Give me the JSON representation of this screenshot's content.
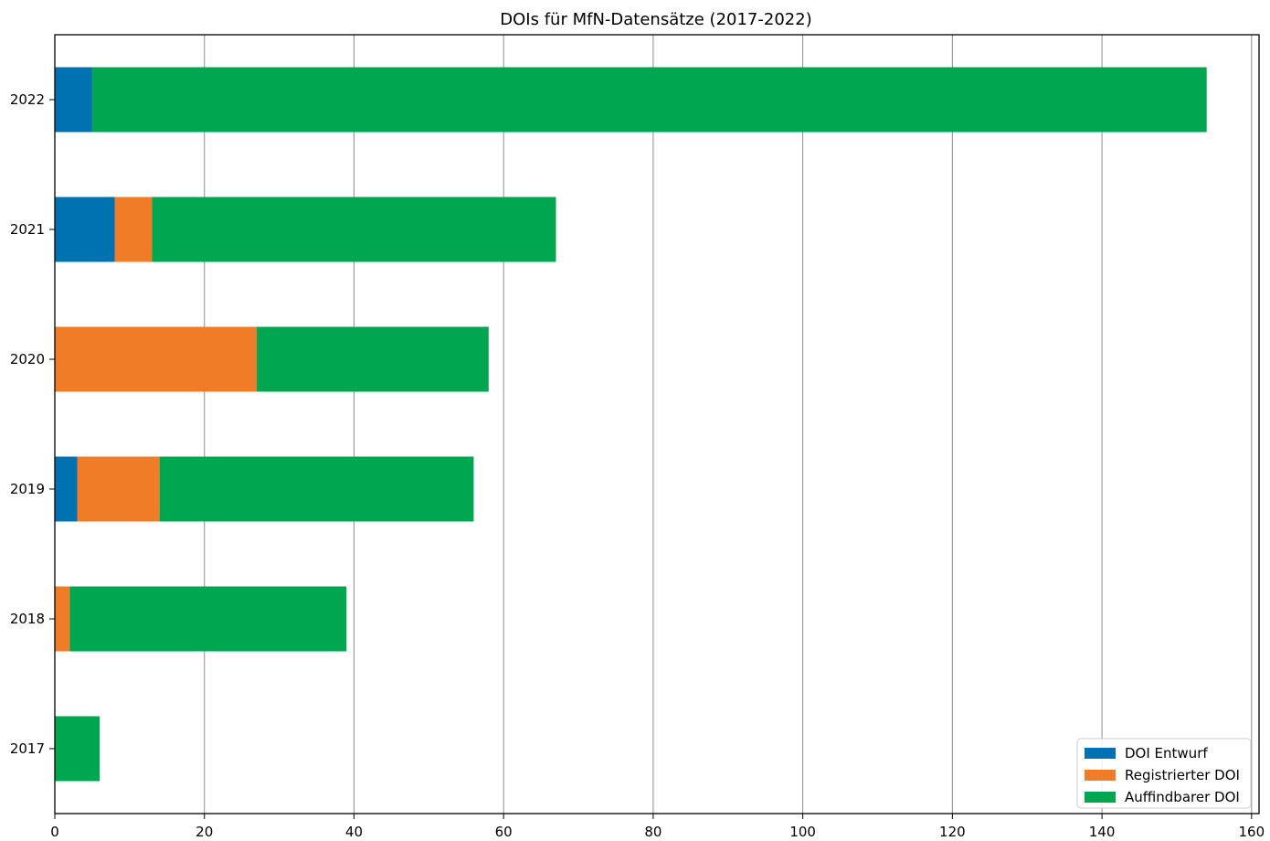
{
  "chart_data": {
    "type": "bar",
    "orientation": "horizontal",
    "stacked": true,
    "title": "DOIs für MfN-Datensätze (2017-2022)",
    "xlabel": "",
    "ylabel": "",
    "categories": [
      "2022",
      "2021",
      "2020",
      "2019",
      "2018",
      "2017"
    ],
    "series": [
      {
        "name": "DOI Entwurf",
        "color": "#0072b2",
        "values": [
          5,
          8,
          0,
          3,
          0,
          0
        ]
      },
      {
        "name": "Registrierter DOI",
        "color": "#f07c27",
        "values": [
          0,
          5,
          27,
          11,
          2,
          0
        ]
      },
      {
        "name": "Auffindbarer DOI",
        "color": "#00a650",
        "values": [
          149,
          54,
          31,
          42,
          37,
          6
        ]
      }
    ],
    "xlim": [
      0,
      161
    ],
    "xticks": [
      0,
      20,
      40,
      60,
      80,
      100,
      120,
      140,
      160
    ],
    "grid": "vertical",
    "legend_position": "bottom-right"
  }
}
